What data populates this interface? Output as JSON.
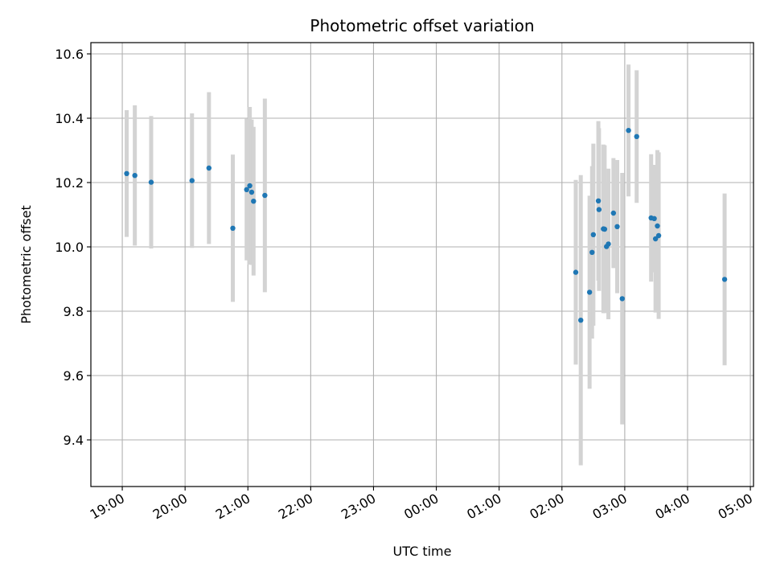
{
  "chart_data": {
    "type": "scatter",
    "title": "Photometric offset variation",
    "xlabel": "UTC time",
    "ylabel": "Photometric offset",
    "grid": true,
    "x_unit": "UTC time (hours, 00:00 = midnight)",
    "xlim": [
      -5.5,
      5.05
    ],
    "ylim": [
      9.255,
      10.635
    ],
    "x_ticks": [
      -5,
      -4,
      -3,
      -2,
      -1,
      0,
      1,
      2,
      3,
      4,
      5
    ],
    "x_tick_labels": [
      "19:00",
      "20:00",
      "21:00",
      "22:00",
      "23:00",
      "00:00",
      "01:00",
      "02:00",
      "03:00",
      "04:00",
      "05:00"
    ],
    "y_ticks": [
      9.4,
      9.6,
      9.8,
      10.0,
      10.2,
      10.4,
      10.6
    ],
    "y_tick_labels": [
      "9.4",
      "9.6",
      "9.8",
      "10.0",
      "10.2",
      "10.4",
      "10.6"
    ],
    "point_color": "#1f77b4",
    "errorbar_color": "#d3d3d3",
    "points": [
      {
        "x": -4.93,
        "y": 10.228,
        "err": 0.197
      },
      {
        "x": -4.8,
        "y": 10.222,
        "err": 0.218
      },
      {
        "x": -4.54,
        "y": 10.201,
        "err": 0.206
      },
      {
        "x": -3.89,
        "y": 10.206,
        "err": 0.209
      },
      {
        "x": -3.62,
        "y": 10.245,
        "err": 0.236
      },
      {
        "x": -3.24,
        "y": 10.058,
        "err": 0.229
      },
      {
        "x": -3.02,
        "y": 10.178,
        "err": 0.22
      },
      {
        "x": -2.97,
        "y": 10.19,
        "err": 0.245
      },
      {
        "x": -2.94,
        "y": 10.17,
        "err": 0.226
      },
      {
        "x": -2.91,
        "y": 10.142,
        "err": 0.231
      },
      {
        "x": -2.73,
        "y": 10.16,
        "err": 0.301
      },
      {
        "x": 2.22,
        "y": 9.921,
        "err": 0.287
      },
      {
        "x": 2.3,
        "y": 9.772,
        "err": 0.451
      },
      {
        "x": 2.44,
        "y": 9.859,
        "err": 0.3
      },
      {
        "x": 2.48,
        "y": 9.983,
        "err": 0.268
      },
      {
        "x": 2.5,
        "y": 10.038,
        "err": 0.283
      },
      {
        "x": 2.58,
        "y": 10.143,
        "err": 0.248
      },
      {
        "x": 2.59,
        "y": 10.116,
        "err": 0.253
      },
      {
        "x": 2.66,
        "y": 10.056,
        "err": 0.262
      },
      {
        "x": 2.68,
        "y": 10.055,
        "err": 0.261
      },
      {
        "x": 2.71,
        "y": 10.001,
        "err": 0.202
      },
      {
        "x": 2.74,
        "y": 10.009,
        "err": 0.234
      },
      {
        "x": 2.82,
        "y": 10.105,
        "err": 0.171
      },
      {
        "x": 2.88,
        "y": 10.063,
        "err": 0.207
      },
      {
        "x": 2.96,
        "y": 9.839,
        "err": 0.391
      },
      {
        "x": 3.06,
        "y": 10.362,
        "err": 0.205
      },
      {
        "x": 3.19,
        "y": 10.343,
        "err": 0.206
      },
      {
        "x": 3.42,
        "y": 10.09,
        "err": 0.198
      },
      {
        "x": 3.47,
        "y": 10.088,
        "err": 0.167
      },
      {
        "x": 3.49,
        "y": 10.025,
        "err": 0.229
      },
      {
        "x": 3.52,
        "y": 10.065,
        "err": 0.236
      },
      {
        "x": 3.54,
        "y": 10.035,
        "err": 0.259
      },
      {
        "x": 4.59,
        "y": 9.899,
        "err": 0.267
      }
    ]
  }
}
